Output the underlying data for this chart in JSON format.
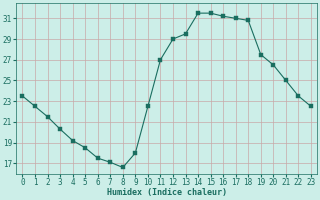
{
  "x": [
    0,
    1,
    2,
    3,
    4,
    5,
    6,
    7,
    8,
    9,
    10,
    11,
    12,
    13,
    14,
    15,
    16,
    17,
    18,
    19,
    20,
    21,
    22,
    23
  ],
  "y": [
    23.5,
    22.5,
    21.5,
    20.3,
    19.2,
    18.5,
    17.5,
    17.1,
    16.6,
    18.0,
    22.5,
    27.0,
    29.0,
    29.5,
    31.5,
    31.5,
    31.2,
    31.0,
    30.8,
    27.5,
    26.5,
    25.0,
    23.5,
    22.5
  ],
  "xlim": [
    -0.5,
    23.5
  ],
  "ylim": [
    16,
    32.5
  ],
  "yticks": [
    17,
    19,
    21,
    23,
    25,
    27,
    29,
    31
  ],
  "xticks": [
    0,
    1,
    2,
    3,
    4,
    5,
    6,
    7,
    8,
    9,
    10,
    11,
    12,
    13,
    14,
    15,
    16,
    17,
    18,
    19,
    20,
    21,
    22,
    23
  ],
  "xlabel": "Humidex (Indice chaleur)",
  "line_color": "#1a6e60",
  "marker_color": "#1a6e60",
  "bg_color": "#cceee8",
  "grid_color": "#c8a8a8",
  "tick_color": "#1a6e60",
  "label_color": "#1a6e60"
}
